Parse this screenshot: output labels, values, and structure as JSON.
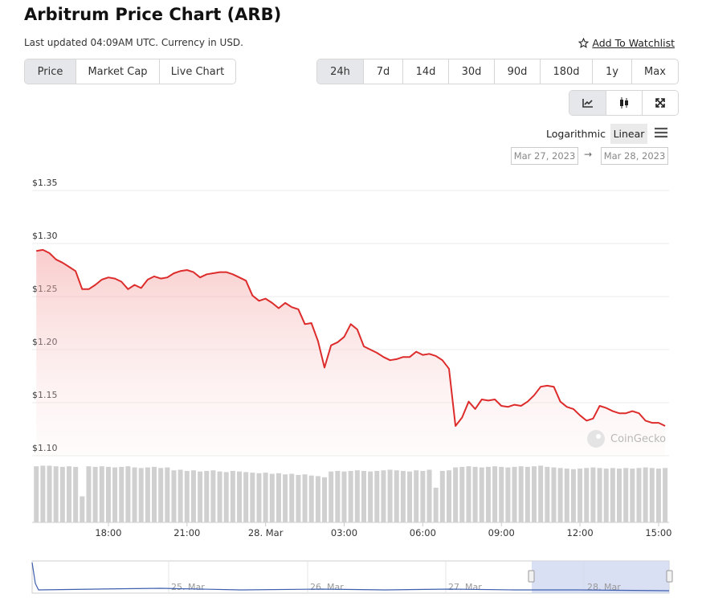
{
  "header": {
    "title": "Arbitrum Price Chart (ARB)",
    "updated": "Last updated 04:09AM UTC. Currency in USD.",
    "watchlist": "Add To Watchlist"
  },
  "tabs": [
    "Price",
    "Market Cap",
    "Live Chart"
  ],
  "ranges": [
    "24h",
    "7d",
    "14d",
    "30d",
    "90d",
    "180d",
    "1y",
    "Max"
  ],
  "scale_options": [
    "Logarithmic",
    "Linear"
  ],
  "date_from": "Mar 27, 2023",
  "date_separator": "→",
  "date_to": "Mar 28, 2023",
  "watermark": "CoinGecko",
  "navigator_labels": [
    "25. Mar",
    "26. Mar",
    "27. Mar",
    "28. Mar"
  ],
  "chart_data": {
    "type": "line",
    "x": [
      15.25,
      15.5,
      15.75,
      16,
      16.25,
      16.5,
      16.75,
      17,
      17.25,
      17.5,
      17.75,
      18,
      18.25,
      18.5,
      18.75,
      19,
      19.25,
      19.5,
      19.75,
      20,
      20.25,
      20.5,
      20.75,
      21,
      21.25,
      21.5,
      21.75,
      22,
      22.25,
      22.5,
      22.75,
      23,
      23.25,
      23.5,
      23.75,
      24,
      24.25,
      24.5,
      24.75,
      25,
      25.25,
      25.5,
      25.75,
      26,
      26.25,
      26.5,
      26.75,
      27,
      27.25,
      27.5,
      27.75,
      28,
      28.25,
      28.5,
      28.75,
      29,
      29.25,
      29.5,
      29.75,
      30,
      30.25,
      30.5,
      30.75,
      31,
      31.25,
      31.5,
      31.75,
      32,
      32.25,
      32.5,
      32.75,
      33,
      33.25,
      33.5,
      33.75,
      34,
      34.25,
      34.5,
      34.75,
      35,
      35.25,
      35.5,
      35.75,
      36,
      36.25,
      36.5,
      36.75,
      37,
      37.25,
      37.5,
      37.75,
      38,
      38.25,
      38.5,
      38.75,
      39,
      39.25
    ],
    "series": [
      {
        "color": "#dd2c2c",
        "values": [
          1.293,
          1.294,
          1.291,
          1.285,
          1.282,
          1.278,
          1.274,
          1.257,
          1.257,
          1.261,
          1.266,
          1.268,
          1.267,
          1.264,
          1.257,
          1.261,
          1.258,
          1.266,
          1.269,
          1.267,
          1.268,
          1.272,
          1.274,
          1.275,
          1.273,
          1.268,
          1.271,
          1.272,
          1.273,
          1.273,
          1.271,
          1.268,
          1.265,
          1.251,
          1.246,
          1.248,
          1.244,
          1.239,
          1.244,
          1.24,
          1.238,
          1.224,
          1.225,
          1.208,
          1.183,
          1.204,
          1.207,
          1.212,
          1.224,
          1.219,
          1.203,
          1.2,
          1.197,
          1.193,
          1.19,
          1.191,
          1.193,
          1.193,
          1.198,
          1.195,
          1.196,
          1.194,
          1.19,
          1.182,
          1.128,
          1.136,
          1.151,
          1.144,
          1.153,
          1.152,
          1.153,
          1.147,
          1.146,
          1.148,
          1.147,
          1.151,
          1.157,
          1.165,
          1.166,
          1.165,
          1.151,
          1.146,
          1.144,
          1.138,
          1.133,
          1.135,
          1.147,
          1.145,
          1.142,
          1.14,
          1.14,
          1.142,
          1.14,
          1.133,
          1.131,
          1.131,
          1.128
        ]
      },
      {
        "color": "#d0d0d0",
        "axis": "y2",
        "values": [
          97,
          98,
          98,
          97,
          96,
          97,
          96,
          45,
          97,
          96,
          97,
          96,
          95,
          96,
          97,
          95,
          94,
          95,
          96,
          94,
          95,
          90,
          91,
          89,
          90,
          88,
          89,
          90,
          88,
          87,
          89,
          88,
          87,
          86,
          85,
          86,
          84,
          85,
          83,
          84,
          82,
          83,
          81,
          80,
          78,
          88,
          89,
          88,
          89,
          90,
          89,
          88,
          89,
          90,
          91,
          90,
          89,
          88,
          90,
          89,
          91,
          60,
          89,
          90,
          95,
          96,
          97,
          96,
          95,
          96,
          97,
          96,
          95,
          96,
          97,
          96,
          97,
          98,
          96,
          95,
          94,
          93,
          92,
          93,
          94,
          95,
          94,
          93,
          94,
          93,
          94,
          93,
          94,
          95,
          94,
          93,
          94
        ]
      }
    ],
    "xlim": [
      15.09,
      39.4
    ],
    "xticks": [
      {
        "value": 18,
        "label": "18:00"
      },
      {
        "value": 21,
        "label": "21:00"
      },
      {
        "value": 24,
        "label": "28. Mar"
      },
      {
        "value": 27,
        "label": "03:00"
      },
      {
        "value": 30,
        "label": "06:00"
      },
      {
        "value": 33,
        "label": "09:00"
      },
      {
        "value": 36,
        "label": "12:00"
      },
      {
        "value": 39,
        "label": "15:00"
      }
    ],
    "ylim": [
      1.1,
      1.35
    ],
    "yticks": [
      {
        "value": 1.1,
        "label": "$1.10"
      },
      {
        "value": 1.15,
        "label": "$1.15"
      },
      {
        "value": 1.2,
        "label": "$1.20"
      },
      {
        "value": 1.25,
        "label": "$1.25"
      },
      {
        "value": 1.3,
        "label": "$1.30"
      },
      {
        "value": 1.35,
        "label": "$1.35"
      }
    ],
    "y2lim": [
      0,
      100
    ],
    "grid": true
  }
}
